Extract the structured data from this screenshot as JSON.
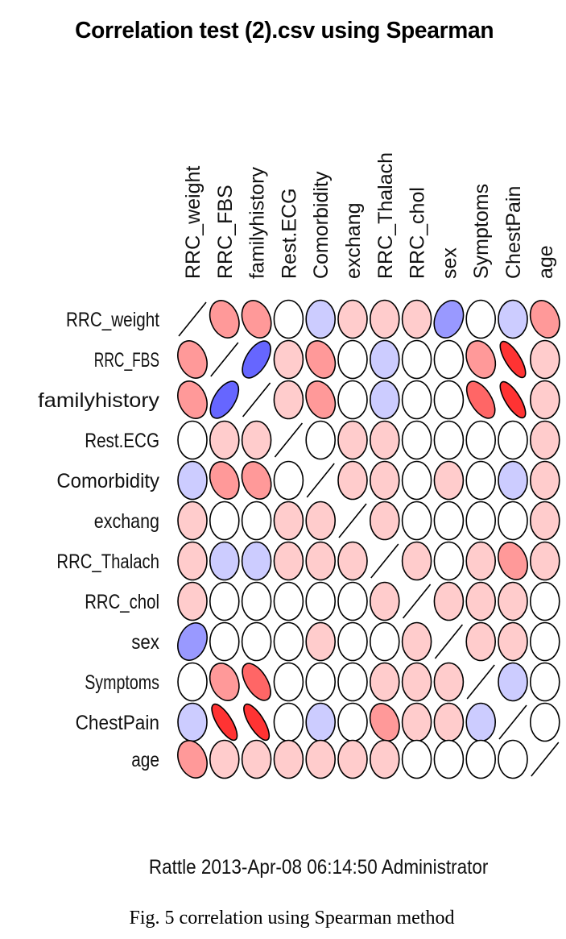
{
  "chart_data": {
    "type": "heatmap",
    "subtype": "ellipse-correlation-matrix",
    "title": "Correlation test (2).csv using Spearman",
    "method": "Spearman",
    "variables": [
      "RRC_weight",
      "RRC_FBS",
      "familyhistory",
      "Rest.ECG",
      "Comorbidity",
      "exchang",
      "RRC_Thalach",
      "RRC_chol",
      "sex",
      "Symptoms",
      "ChestPain",
      "age"
    ],
    "row_labels": [
      "RRC_weight",
      "RRC_FBS",
      "familyhistory",
      "Rest.ECG",
      "Comorbidity",
      "exchang",
      "RRC_Thalach",
      "RRC_chol",
      "sex",
      "Symptoms",
      "ChestPain",
      "age"
    ],
    "column_labels": [
      "RRC_weight",
      "RRC_FBS",
      "familyhistory",
      "Rest.ECG",
      "Comorbidity",
      "exchang",
      "RRC_Thalach",
      "RRC_chol",
      "sex",
      "Symptoms",
      "ChestPain",
      "age"
    ],
    "matrix": [
      [
        1,
        -0.4,
        -0.4,
        0,
        0.2,
        -0.2,
        -0.2,
        -0.2,
        0.4,
        0,
        0.2,
        -0.4
      ],
      [
        -0.4,
        1,
        0.6,
        -0.2,
        -0.4,
        0,
        0.2,
        0,
        0,
        -0.4,
        -0.8,
        -0.2
      ],
      [
        -0.4,
        0.6,
        1,
        -0.2,
        -0.4,
        0,
        0.2,
        0,
        0,
        -0.6,
        -0.8,
        -0.2
      ],
      [
        0,
        -0.2,
        -0.2,
        1,
        0,
        -0.2,
        -0.2,
        0,
        0,
        0,
        0,
        -0.2
      ],
      [
        0.2,
        -0.4,
        -0.4,
        0,
        1,
        -0.2,
        -0.2,
        0,
        -0.2,
        0,
        0.2,
        -0.2
      ],
      [
        -0.2,
        0,
        0,
        -0.2,
        -0.2,
        1,
        -0.2,
        0,
        0,
        0,
        0,
        -0.2
      ],
      [
        -0.2,
        0.2,
        0.2,
        -0.2,
        -0.2,
        -0.2,
        1,
        -0.2,
        0,
        -0.2,
        -0.4,
        -0.2
      ],
      [
        -0.2,
        0,
        0,
        0,
        0,
        0,
        -0.2,
        1,
        -0.2,
        -0.2,
        -0.2,
        0
      ],
      [
        0.4,
        0,
        0,
        0,
        -0.2,
        0,
        0,
        -0.2,
        1,
        -0.2,
        -0.2,
        0
      ],
      [
        0,
        -0.4,
        -0.6,
        0,
        0,
        0,
        -0.2,
        -0.2,
        -0.2,
        1,
        0.2,
        0
      ],
      [
        0.2,
        -0.8,
        -0.8,
        0,
        0.2,
        0,
        -0.4,
        -0.2,
        -0.2,
        0.2,
        1,
        0
      ],
      [
        -0.4,
        -0.2,
        -0.2,
        -0.2,
        -0.2,
        -0.2,
        -0.2,
        0,
        0,
        0,
        0,
        1
      ]
    ],
    "value_range": [
      -1,
      1
    ],
    "color_scale": {
      "negative": "#FF0000",
      "zero": "#FFFFFF",
      "positive": "#0000FF"
    },
    "legend": "none",
    "grid": false
  },
  "footer": "Rattle 2013-Apr-08 06:14:50 Administrator",
  "caption": "Fig. 5 correlation using Spearman method"
}
